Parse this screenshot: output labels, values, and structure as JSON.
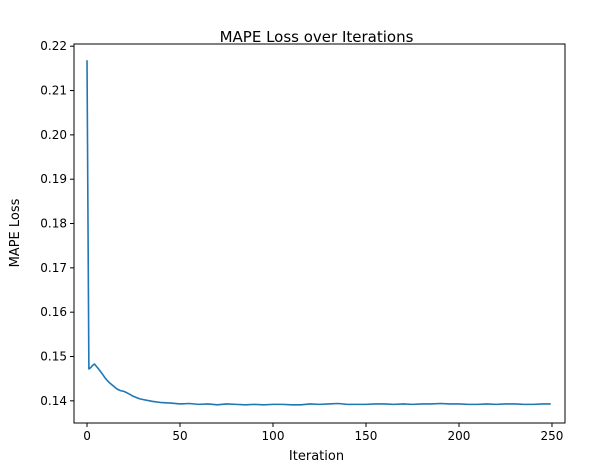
{
  "chart_data": {
    "type": "line",
    "title": "MAPE Loss over Iterations",
    "xlabel": "Iteration",
    "ylabel": "MAPE Loss",
    "xlim": [
      -7,
      257
    ],
    "ylim": [
      0.135,
      0.2205
    ],
    "xticks": [
      0,
      50,
      100,
      150,
      200,
      250
    ],
    "yticks": [
      0.14,
      0.15,
      0.16,
      0.17,
      0.18,
      0.19,
      0.2,
      0.21,
      0.22
    ],
    "ytick_labels": [
      "0.14",
      "0.15",
      "0.16",
      "0.17",
      "0.18",
      "0.19",
      "0.20",
      "0.21",
      "0.22"
    ],
    "grid": false,
    "series": [
      {
        "color": "#1f77b4",
        "x": [
          0,
          1,
          2,
          3,
          4,
          5,
          6,
          8,
          10,
          12,
          14,
          16,
          18,
          20,
          22,
          25,
          28,
          30,
          35,
          40,
          45,
          50,
          55,
          60,
          65,
          70,
          75,
          80,
          85,
          90,
          95,
          100,
          105,
          110,
          115,
          120,
          125,
          130,
          135,
          140,
          145,
          150,
          155,
          160,
          165,
          170,
          175,
          180,
          185,
          190,
          195,
          200,
          205,
          210,
          215,
          220,
          225,
          230,
          235,
          240,
          245,
          249
        ],
        "y": [
          0.2167,
          0.1472,
          0.1475,
          0.148,
          0.1483,
          0.1478,
          0.1473,
          0.1462,
          0.145,
          0.1441,
          0.1434,
          0.1427,
          0.1423,
          0.1421,
          0.1417,
          0.141,
          0.1405,
          0.1403,
          0.1399,
          0.1396,
          0.1395,
          0.1393,
          0.1394,
          0.1392,
          0.1393,
          0.1391,
          0.1393,
          0.1392,
          0.1391,
          0.1392,
          0.1391,
          0.1392,
          0.1392,
          0.1391,
          0.1391,
          0.1393,
          0.1392,
          0.1393,
          0.1394,
          0.1392,
          0.1392,
          0.1392,
          0.1393,
          0.1393,
          0.1392,
          0.1393,
          0.1392,
          0.1393,
          0.1393,
          0.1394,
          0.1393,
          0.1393,
          0.1392,
          0.1392,
          0.1393,
          0.1392,
          0.1393,
          0.1393,
          0.1392,
          0.1392,
          0.1393,
          0.1393
        ]
      }
    ]
  }
}
